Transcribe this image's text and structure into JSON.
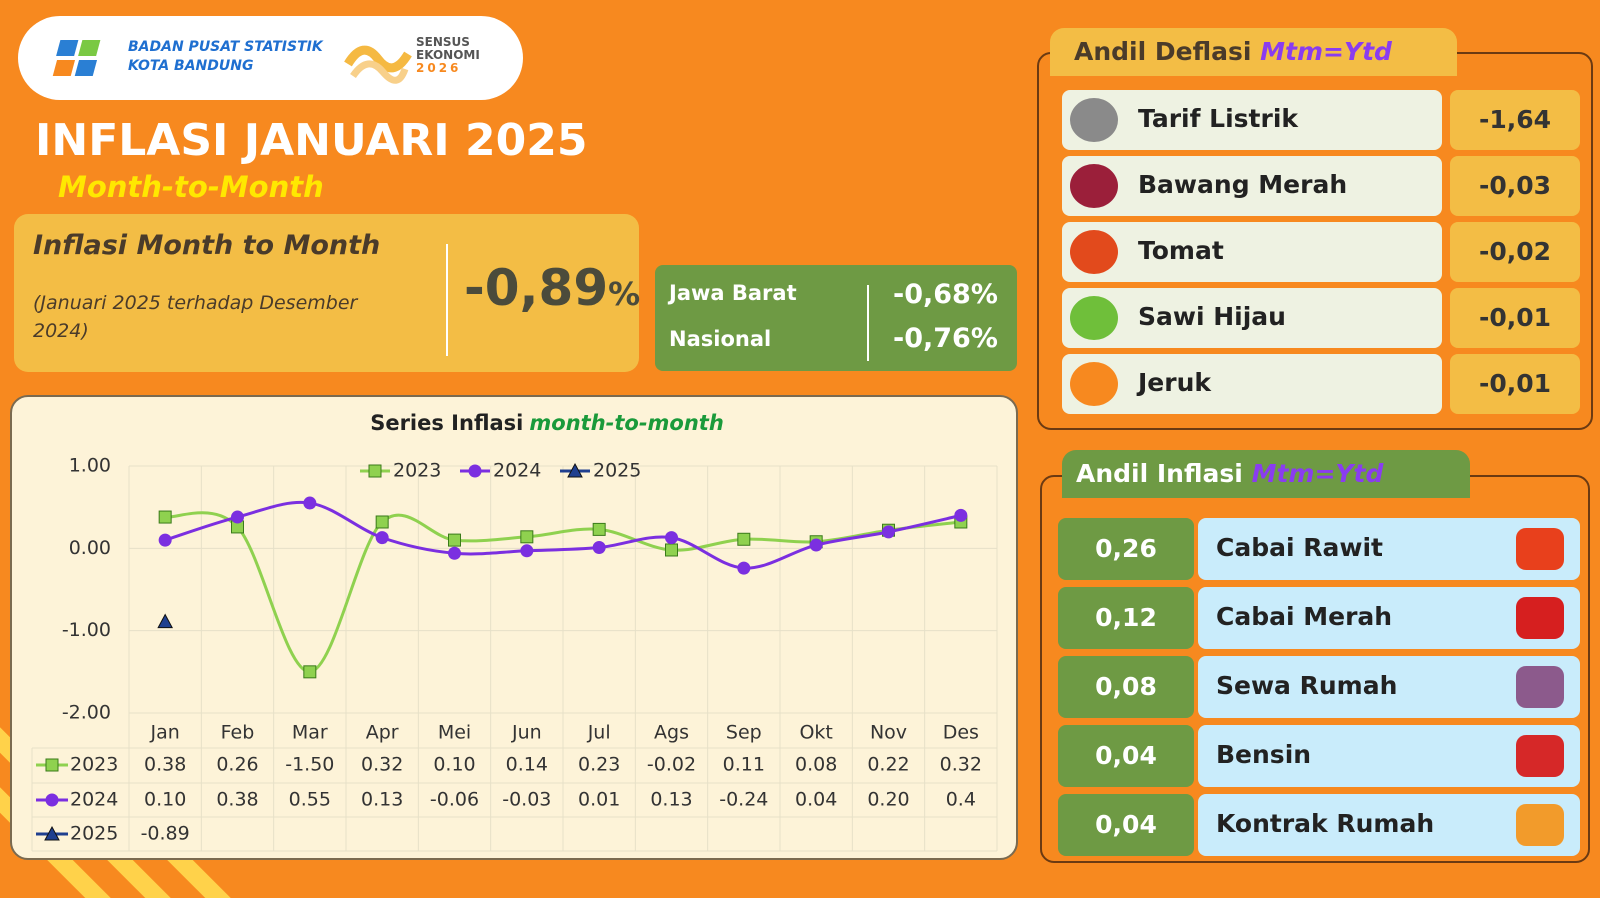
{
  "header": {
    "org_name": "BADAN PUSAT STATISTIK",
    "org_region": "KOTA BANDUNG",
    "census": [
      "SENSUS",
      "EKONOMI",
      "2026"
    ]
  },
  "title": "INFLASI JANUARI 2025",
  "subtitle": "Month-to-Month",
  "summary": {
    "label": "Inflasi Month to Month",
    "period": "(Januari 2025 terhadap Desember 2024)",
    "value": "-0,89",
    "unit": "%"
  },
  "comparison": [
    {
      "region": "Jawa Barat",
      "value": "-0,68%"
    },
    {
      "region": "Nasional",
      "value": "-0,76%"
    }
  ],
  "chart_data": {
    "type": "line",
    "title": "Series Inflasi",
    "title_highlight": "month-to-month",
    "categories": [
      "Jan",
      "Feb",
      "Mar",
      "Apr",
      "Mei",
      "Jun",
      "Jul",
      "Ags",
      "Sep",
      "Okt",
      "Nov",
      "Des"
    ],
    "series": [
      {
        "name": "2023",
        "color": "#7ac943",
        "marker": "square",
        "values": [
          0.38,
          0.26,
          -1.5,
          0.32,
          0.1,
          0.14,
          0.23,
          -0.02,
          0.11,
          0.08,
          0.22,
          0.32
        ],
        "value_labels": [
          "0.38",
          "0.26",
          "-1.50",
          "0.32",
          "0.10",
          "0.14",
          "0.23",
          "-0.02",
          "0.11",
          "0.08",
          "0.22",
          "0.32"
        ]
      },
      {
        "name": "2024",
        "color": "#7b2fe0",
        "marker": "circle",
        "values": [
          0.1,
          0.38,
          0.55,
          0.13,
          -0.06,
          -0.03,
          0.01,
          0.13,
          -0.24,
          0.04,
          0.2,
          0.4
        ],
        "value_labels": [
          "0.10",
          "0.38",
          "0.55",
          "0.13",
          "-0.06",
          "-0.03",
          "0.01",
          "0.13",
          "-0.24",
          "0.04",
          "0.20",
          "0.4"
        ]
      },
      {
        "name": "2025",
        "color": "#1f3f8f",
        "marker": "triangle",
        "values": [
          -0.89,
          null,
          null,
          null,
          null,
          null,
          null,
          null,
          null,
          null,
          null,
          null
        ],
        "value_labels": [
          "-0.89",
          null,
          null,
          null,
          null,
          null,
          null,
          null,
          null,
          null,
          null,
          null
        ]
      }
    ],
    "ylim": [
      -2,
      1
    ],
    "yticks": [
      {
        "value": 1,
        "label": "1.00"
      },
      {
        "value": 0,
        "label": "0.00"
      },
      {
        "value": -1,
        "label": "-1.00"
      },
      {
        "value": -2,
        "label": "-2.00"
      }
    ],
    "grid": true,
    "legend": "top"
  },
  "deflation": {
    "title": "Andil Deflasi",
    "highlight": "Mtm=Ytd",
    "items": [
      {
        "name": "Tarif Listrik",
        "value": "-1,64"
      },
      {
        "name": "Bawang Merah",
        "value": "-0,03"
      },
      {
        "name": "Tomat",
        "value": "-0,02"
      },
      {
        "name": "Sawi Hijau",
        "value": "-0,01"
      },
      {
        "name": "Jeruk",
        "value": "-0,01"
      }
    ]
  },
  "inflation": {
    "title": "Andil Inflasi",
    "highlight": "Mtm=Ytd",
    "items": [
      {
        "name": "Cabai Rawit",
        "value": "0,26"
      },
      {
        "name": "Cabai Merah",
        "value": "0,12"
      },
      {
        "name": "Sewa Rumah",
        "value": "0,08"
      },
      {
        "name": "Bensin",
        "value": "0,04"
      },
      {
        "name": "Kontrak Rumah",
        "value": "0,04"
      }
    ]
  }
}
